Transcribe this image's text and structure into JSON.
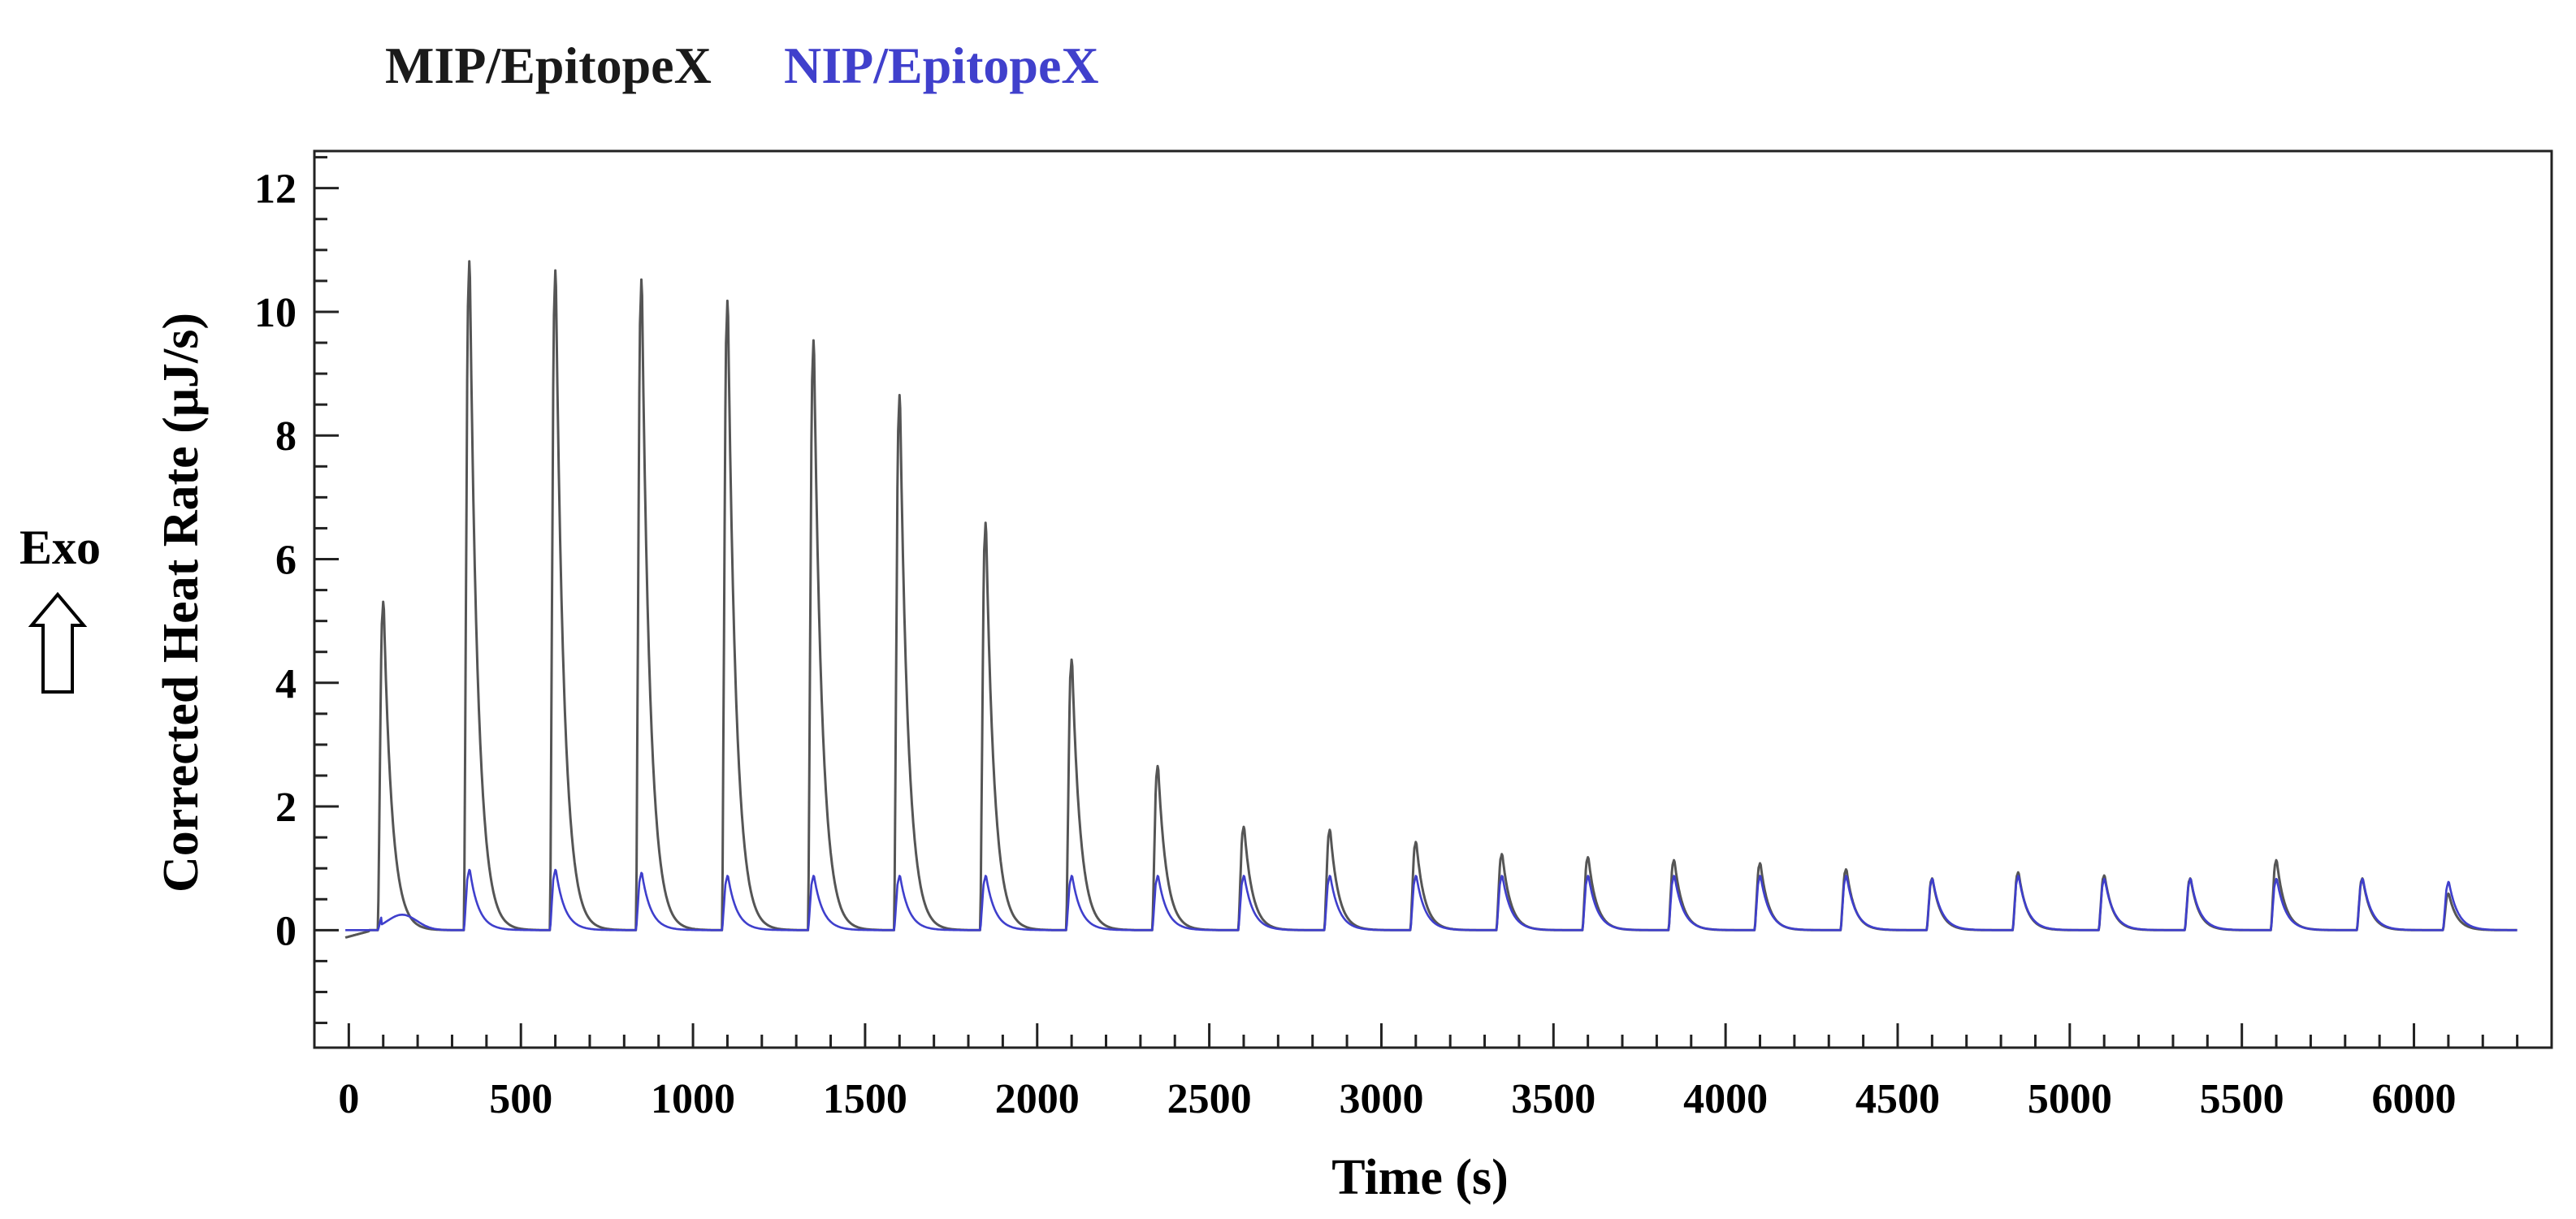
{
  "legend": {
    "series1": "MIP/EpitopeX",
    "series2": "NIP/EpitopeX"
  },
  "side_label": "Exo",
  "colors": {
    "mip": "#555555",
    "nip": "#3f3fcc",
    "legend_mip": "#1a1a1a",
    "legend_nip": "#4040cc"
  },
  "chart_data": {
    "type": "line",
    "title": "",
    "xlabel": "Time (s)",
    "ylabel": "Corrected Heat Rate (μJ/s)",
    "xlim": [
      -100,
      6400
    ],
    "ylim": [
      -1.9,
      12.6
    ],
    "xticks": [
      0,
      500,
      1000,
      1500,
      2000,
      2500,
      3000,
      3500,
      4000,
      4500,
      5000,
      5500,
      6000
    ],
    "xtick_labels": [
      "0",
      "500",
      "1000",
      "1500",
      "2000",
      "2500",
      "3000",
      "3500",
      "4000",
      "4500",
      "5000",
      "5500",
      "6000"
    ],
    "yticks": [
      0,
      2,
      4,
      6,
      8,
      10,
      12
    ],
    "ytick_labels": [
      "0",
      "2",
      "4",
      "6",
      "8",
      "10",
      "12"
    ],
    "injection_times": [
      95,
      345,
      595,
      845,
      1095,
      1345,
      1595,
      1845,
      2095,
      2345,
      2595,
      2845,
      3095,
      3345,
      3595,
      3845,
      4095,
      4345,
      4595,
      4845,
      5095,
      5345,
      5595,
      5845,
      6095
    ],
    "series": [
      {
        "name": "MIP/EpitopeX",
        "peak_heights": [
          5.4,
          11.0,
          10.85,
          10.7,
          10.35,
          9.7,
          8.8,
          6.7,
          4.45,
          2.7,
          1.7,
          1.65,
          1.45,
          1.25,
          1.2,
          1.15,
          1.1,
          1.0,
          0.85,
          0.95,
          0.9,
          0.85,
          1.15,
          0.85,
          0.6
        ]
      },
      {
        "name": "NIP/EpitopeX",
        "peak_heights": [
          0.25,
          1.0,
          1.0,
          0.95,
          0.9,
          0.9,
          0.9,
          0.9,
          0.9,
          0.9,
          0.9,
          0.9,
          0.9,
          0.9,
          0.9,
          0.9,
          0.9,
          0.9,
          0.85,
          0.9,
          0.85,
          0.85,
          0.85,
          0.85,
          0.8
        ]
      }
    ],
    "grid": false
  }
}
